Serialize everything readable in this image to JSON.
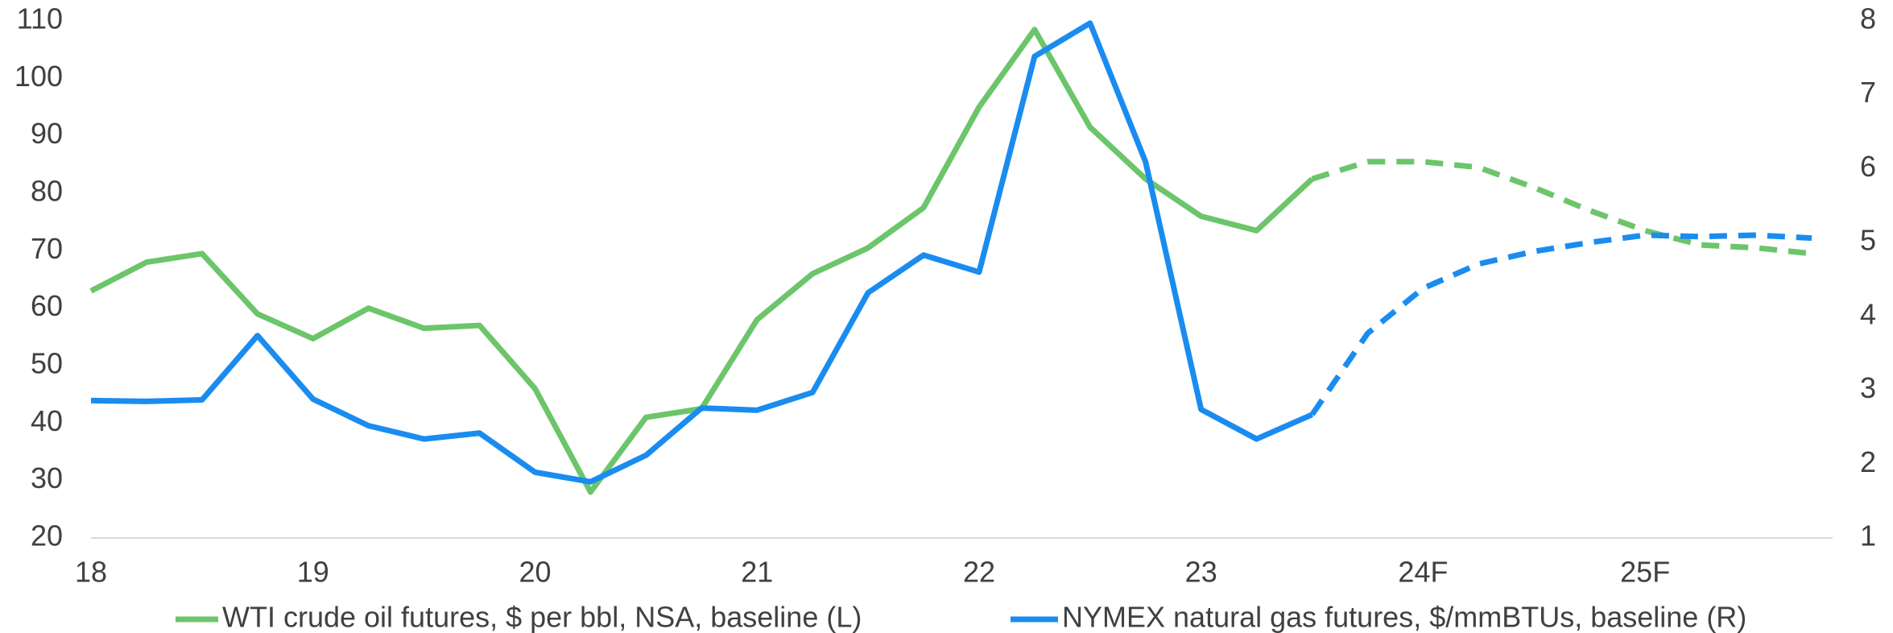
{
  "chart_data": {
    "type": "line",
    "categories": [
      "18",
      null,
      null,
      null,
      "19",
      null,
      null,
      null,
      "20",
      null,
      null,
      null,
      "21",
      null,
      null,
      null,
      "22",
      null,
      null,
      null,
      "23",
      null,
      null,
      null,
      "24F",
      null,
      null,
      null,
      "25F",
      null,
      null,
      null
    ],
    "ylim": [
      20,
      110
    ],
    "yticks": [
      20,
      30,
      40,
      50,
      60,
      70,
      80,
      90,
      100,
      110
    ],
    "y2lim": [
      1,
      8
    ],
    "y2ticks": [
      1,
      2,
      3,
      4,
      5,
      6,
      7,
      8
    ],
    "grid": false,
    "legend": "bottom",
    "series": [
      {
        "name": "WTI crude oil futures, $ per bbl, NSA, baseline (L)",
        "color": "#6cc56a",
        "axis": "y",
        "dash_from": 22,
        "values": [
          63,
          68,
          69.5,
          59,
          54.7,
          60,
          56.5,
          57,
          46,
          28,
          41,
          42.5,
          58,
          66,
          70.5,
          77.5,
          95,
          108.5,
          91.5,
          82.5,
          76,
          73.5,
          82.5,
          85.5,
          85.5,
          84.5,
          81,
          77,
          73.5,
          71,
          70.5,
          69.5
        ]
      },
      {
        "name": "NYMEX natural gas futures, $/mmBTUs, baseline (R)",
        "color": "#1a8cf0",
        "axis": "y2",
        "dash_from": 22,
        "values": [
          2.86,
          2.85,
          2.87,
          3.74,
          2.88,
          2.52,
          2.34,
          2.42,
          1.89,
          1.76,
          2.12,
          2.76,
          2.73,
          2.97,
          4.32,
          4.83,
          4.6,
          7.52,
          7.97,
          6.09,
          2.74,
          2.34,
          2.67,
          3.77,
          4.38,
          4.71,
          4.88,
          5.0,
          5.1,
          5.08,
          5.1,
          5.06
        ]
      }
    ]
  }
}
